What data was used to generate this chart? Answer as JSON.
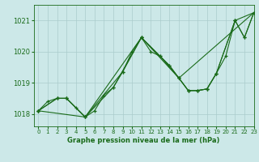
{
  "background_color": "#cce8e8",
  "grid_color": "#aacccc",
  "line_color": "#1a6b1a",
  "title": "Graphe pression niveau de la mer (hPa)",
  "xlim": [
    -0.5,
    23
  ],
  "ylim": [
    1017.6,
    1021.5
  ],
  "yticks": [
    1018,
    1019,
    1020,
    1021
  ],
  "xticks": [
    0,
    1,
    2,
    3,
    4,
    5,
    6,
    7,
    8,
    9,
    10,
    11,
    12,
    13,
    14,
    15,
    16,
    17,
    18,
    19,
    20,
    21,
    22,
    23
  ],
  "series": [
    {
      "x": [
        0,
        1,
        2,
        3,
        4,
        5,
        6,
        7,
        8,
        9,
        10,
        11,
        12,
        13,
        14,
        15,
        16,
        17,
        18,
        19,
        20,
        21,
        22,
        23
      ],
      "y": [
        1018.1,
        1018.4,
        1018.5,
        1018.5,
        1018.2,
        1017.9,
        1018.1,
        1018.6,
        1018.85,
        1019.35,
        1020.0,
        1020.45,
        1020.0,
        1019.85,
        1019.55,
        1019.15,
        1018.75,
        1018.75,
        1018.8,
        1019.3,
        1019.85,
        1021.0,
        1020.45,
        1021.25
      ]
    },
    {
      "x": [
        0,
        5,
        11,
        15,
        23
      ],
      "y": [
        1018.1,
        1017.9,
        1020.45,
        1019.15,
        1021.25
      ]
    },
    {
      "x": [
        0,
        2,
        3,
        5,
        8,
        11,
        14,
        16,
        17,
        18,
        19,
        21,
        23
      ],
      "y": [
        1018.1,
        1018.5,
        1018.5,
        1017.9,
        1018.85,
        1020.45,
        1019.55,
        1018.75,
        1018.75,
        1018.8,
        1019.3,
        1021.0,
        1021.25
      ]
    },
    {
      "x": [
        0,
        2,
        3,
        5,
        9,
        11,
        13,
        15,
        16,
        17,
        18,
        19,
        21,
        22,
        23
      ],
      "y": [
        1018.1,
        1018.5,
        1018.5,
        1017.9,
        1019.35,
        1020.45,
        1019.85,
        1019.15,
        1018.75,
        1018.75,
        1018.8,
        1019.3,
        1021.0,
        1020.45,
        1021.25
      ]
    }
  ]
}
